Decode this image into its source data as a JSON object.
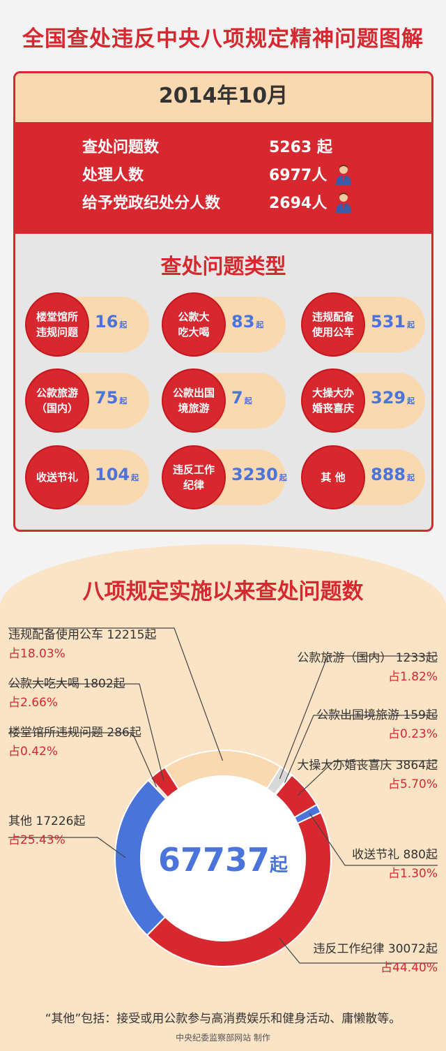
{
  "title": "全国查处违反中央八项规定精神问题图解",
  "month": {
    "period": "2014年10月",
    "stats": [
      {
        "label": "查处问题数",
        "value": "5263 起",
        "icon": false
      },
      {
        "label": "处理人数",
        "value": "6977人",
        "icon": true
      },
      {
        "label": "给予党政纪处分人数",
        "value": "2694人",
        "icon": true
      }
    ],
    "types_title": "查处问题类型",
    "types": [
      {
        "name": "楼堂馆所\n违规问题",
        "count": "16",
        "unit": "起"
      },
      {
        "name": "公款大\n吃大喝",
        "count": "83",
        "unit": "起"
      },
      {
        "name": "违规配备\n使用公车",
        "count": "531",
        "unit": "起"
      },
      {
        "name": "公款旅游\n（国内）",
        "count": "75",
        "unit": "起"
      },
      {
        "name": "公款出国\n境旅游",
        "count": "7",
        "unit": "起"
      },
      {
        "name": "大操大办\n婚丧喜庆",
        "count": "329",
        "unit": "起"
      },
      {
        "name": "收送节礼",
        "count": "104",
        "unit": "起"
      },
      {
        "name": "违反工作\n纪律",
        "count": "3230",
        "unit": "起"
      },
      {
        "name": "其 他",
        "count": "888",
        "unit": "起"
      }
    ]
  },
  "chart_data": {
    "type": "pie",
    "title": "八项规定实施以来查处问题数",
    "total": "67737",
    "total_unit": "起",
    "slices": [
      {
        "label": "违规配备使用公车",
        "count_text": "12215起",
        "pct_text": "占18.03%",
        "value": 12215,
        "color": "#fbd9b0"
      },
      {
        "label": "公款旅游（国内）",
        "count_text": "1233起",
        "pct_text": "占1.82%",
        "value": 1233,
        "color": "#d8d8d8"
      },
      {
        "label": "公款出国境旅游",
        "count_text": "159起",
        "pct_text": "占0.23%",
        "value": 159,
        "color": "#bdbdbd"
      },
      {
        "label": "大操大办婚丧喜庆",
        "count_text": "3864起",
        "pct_text": "占5.70%",
        "value": 3864,
        "color": "#d7282f"
      },
      {
        "label": "收送节礼",
        "count_text": "880起",
        "pct_text": "占1.30%",
        "value": 880,
        "color": "#4a74d9"
      },
      {
        "label": "违反工作纪律",
        "count_text": "30072起",
        "pct_text": "占44.40%",
        "value": 30072,
        "color": "#d7282f"
      },
      {
        "label": "其他",
        "count_text": "17226起",
        "pct_text": "占25.43%",
        "value": 17226,
        "color": "#4a74d9"
      },
      {
        "label": "楼堂馆所违规问题",
        "count_text": "286起",
        "pct_text": "占0.42%",
        "value": 286,
        "color": "#fbd9b0"
      },
      {
        "label": "公款大吃大喝",
        "count_text": "1802起",
        "pct_text": "占2.66%",
        "value": 1802,
        "color": "#d7282f"
      }
    ]
  },
  "note": "“其他”包括：接受或用公款参与高消费娱乐和健身活动、庸懒散等。",
  "credit": "中央纪委监察部网站 制作"
}
